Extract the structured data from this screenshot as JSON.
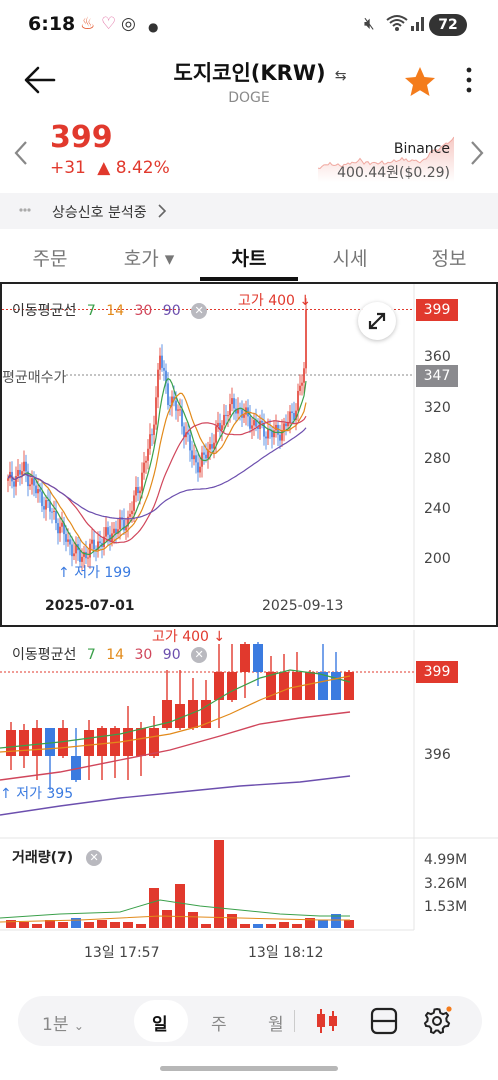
{
  "status_bar": {
    "time": "6:18",
    "battery": "72"
  },
  "header": {
    "title": "도지코인(KRW)",
    "subtitle": "DOGE"
  },
  "price": {
    "current": "399",
    "change": "+31",
    "change_pct": "▲ 8.42%",
    "exchange": "Binance",
    "exchange_price": "400.44원($0.29)"
  },
  "signal": {
    "label": "상승신호 분석중"
  },
  "tabs": [
    {
      "label": "주문"
    },
    {
      "label": "호가 ▾"
    },
    {
      "label": "차트"
    },
    {
      "label": "시세"
    },
    {
      "label": "정보"
    }
  ],
  "daily_chart": {
    "legend_title": "이동평균선",
    "ma_periods": [
      "7",
      "14",
      "30",
      "90"
    ],
    "high_label": "고가 400",
    "low_label": "저가 199",
    "avg_buy_label": "평균매수가",
    "current_tag": "399",
    "avg_tag": "347",
    "y_ticks": [
      "360",
      "320",
      "280",
      "240",
      "200"
    ],
    "x_ticks": [
      "2025-07-01",
      "2025-09-13"
    ]
  },
  "minute_chart": {
    "legend_title": "이동평균선",
    "ma_periods": [
      "7",
      "14",
      "30",
      "90"
    ],
    "high_label": "고가 400",
    "low_label": "저가 395",
    "current_tag": "399",
    "y_ticks": [
      "396"
    ],
    "volume_title": "거래량(7)",
    "volume_ticks": [
      "4.99M",
      "3.26M",
      "1.53M"
    ],
    "x_ticks": [
      "13일 17:57",
      "13일 18:12"
    ]
  },
  "toolbar": {
    "interval": "1분",
    "periods": [
      "일",
      "주",
      "월"
    ],
    "active_period": "일"
  },
  "colors": {
    "up": "#e1392d",
    "down": "#3b7be0",
    "ma7": "#3aa04a",
    "ma14": "#e28a1a",
    "ma30": "#d0465b",
    "ma90": "#6c4fae",
    "star": "#f47c1c"
  }
}
